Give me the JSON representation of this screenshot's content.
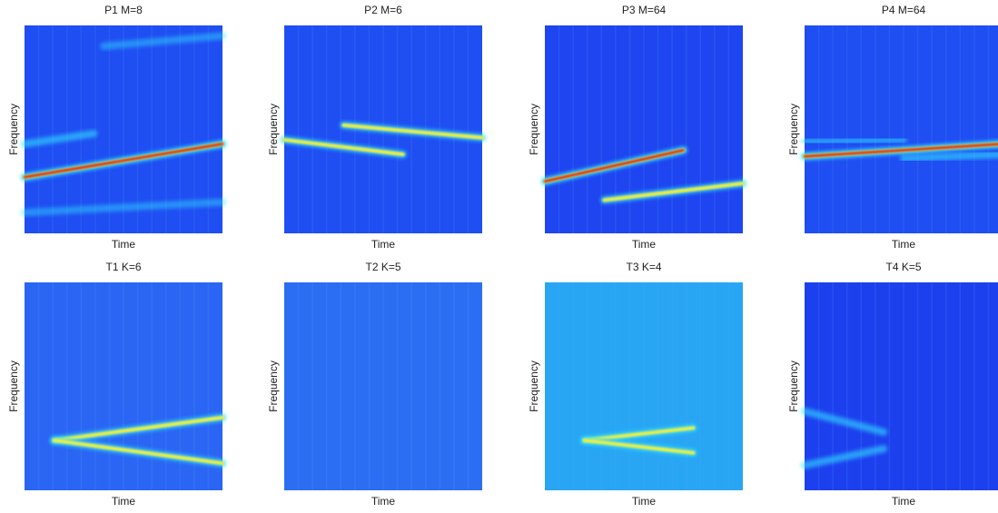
{
  "panels": [
    {
      "title": "P1 M=8",
      "xlabel": "Time",
      "ylabel": "Frequency"
    },
    {
      "title": "P2 M=6",
      "xlabel": "Time",
      "ylabel": "Frequency"
    },
    {
      "title": "P3 M=64",
      "xlabel": "Time",
      "ylabel": "Frequency"
    },
    {
      "title": "P4 M=64",
      "xlabel": "Time",
      "ylabel": "Frequency"
    },
    {
      "title": "T1 K=6",
      "xlabel": "Time",
      "ylabel": "Frequency"
    },
    {
      "title": "T2 K=5",
      "xlabel": "Time",
      "ylabel": "Frequency"
    },
    {
      "title": "T3 K=4",
      "xlabel": "Time",
      "ylabel": "Frequency"
    },
    {
      "title": "T4 K=5",
      "xlabel": "Time",
      "ylabel": "Frequency"
    }
  ]
}
